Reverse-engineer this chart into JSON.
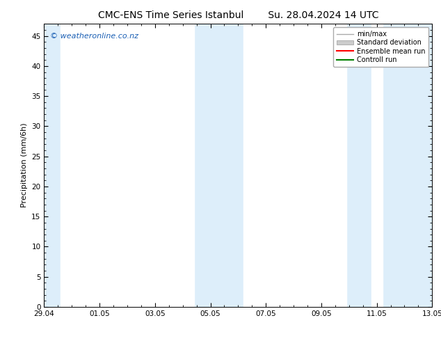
{
  "title_left": "CMC-ENS Time Series Istanbul",
  "title_right": "Su. 28.04.2024 14 UTC",
  "ylabel": "Precipitation (mm/6h)",
  "watermark": "© weatheronline.co.nz",
  "xlim_left": 0.0,
  "xlim_right": 14.0,
  "ylim_bottom": 0,
  "ylim_top": 47,
  "yticks": [
    0,
    5,
    10,
    15,
    20,
    25,
    30,
    35,
    40,
    45
  ],
  "xtick_positions": [
    0,
    2,
    4,
    6,
    8,
    10,
    12,
    14
  ],
  "xtick_labels": [
    "29.04",
    "01.05",
    "03.05",
    "05.05",
    "07.05",
    "09.05",
    "11.05",
    "13.05"
  ],
  "plot_bg_color": "#ddeefa",
  "shaded_regions": [
    {
      "x_start": 0.0,
      "x_end": 0.6,
      "color": "#ddeefa"
    },
    {
      "x_start": 5.4,
      "x_end": 6.0,
      "color": "#ddeefa"
    },
    {
      "x_start": 6.0,
      "x_end": 7.2,
      "color": "#ddeefa"
    },
    {
      "x_start": 10.9,
      "x_end": 11.8,
      "color": "#ddeefa"
    },
    {
      "x_start": 12.2,
      "x_end": 14.0,
      "color": "#ddeefa"
    }
  ],
  "gap_regions": [
    {
      "x_start": 0.6,
      "x_end": 5.4,
      "color": "#ffffff"
    },
    {
      "x_start": 7.2,
      "x_end": 10.9,
      "color": "#ffffff"
    },
    {
      "x_start": 11.8,
      "x_end": 12.2,
      "color": "#ffffff"
    }
  ],
  "legend_entries": [
    {
      "label": "min/max",
      "color": "#aaaaaa",
      "style": "line",
      "lw": 1.0
    },
    {
      "label": "Standard deviation",
      "color": "#cccccc",
      "style": "fill"
    },
    {
      "label": "Ensemble mean run",
      "color": "#ff0000",
      "style": "line",
      "lw": 1.5
    },
    {
      "label": "Controll run",
      "color": "#008000",
      "style": "line",
      "lw": 1.5
    }
  ],
  "watermark_color": "#1a5fb4",
  "bg_color": "#ffffff",
  "border_color": "#000000",
  "tick_color": "#000000",
  "title_fontsize": 10,
  "label_fontsize": 8,
  "tick_fontsize": 7.5,
  "watermark_fontsize": 8,
  "legend_fontsize": 7
}
